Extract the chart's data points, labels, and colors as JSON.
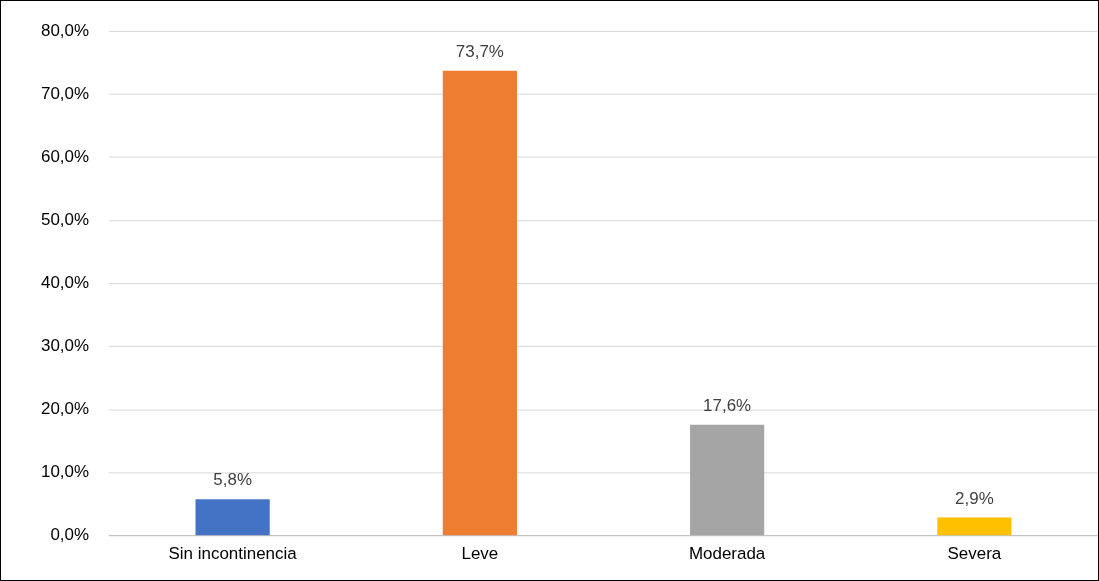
{
  "chart_data": {
    "type": "bar",
    "categories": [
      "Sin incontinencia",
      "Leve",
      "Moderada",
      "Severa"
    ],
    "values": [
      5.8,
      73.7,
      17.6,
      2.9
    ],
    "colors": [
      "#4472c4",
      "#ed7d31",
      "#a5a5a5",
      "#ffc000"
    ],
    "value_labels": [
      "5,8%",
      "73,7%",
      "17,6%",
      "2,9%"
    ],
    "ylim": [
      0,
      80
    ],
    "yticks": [
      {
        "value": 0,
        "label": "0,0%"
      },
      {
        "value": 10,
        "label": "10,0%"
      },
      {
        "value": 20,
        "label": "20,0%"
      },
      {
        "value": 30,
        "label": "30,0%"
      },
      {
        "value": 40,
        "label": "40,0%"
      },
      {
        "value": 50,
        "label": "50,0%"
      },
      {
        "value": 60,
        "label": "60,0%"
      },
      {
        "value": 70,
        "label": "70,0%"
      },
      {
        "value": 80,
        "label": "80,0%"
      }
    ],
    "grid": "y"
  }
}
